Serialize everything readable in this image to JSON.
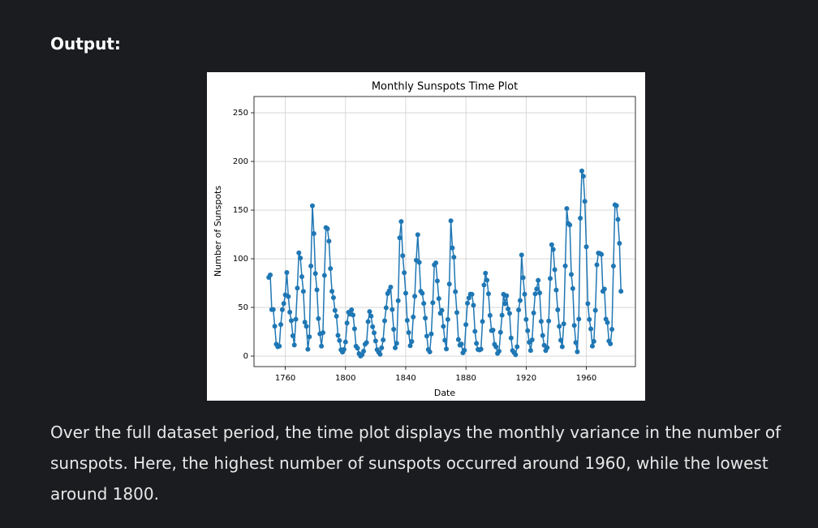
{
  "heading": "Output:",
  "chart_data": {
    "type": "line",
    "title": "Monthly Sunspots Time Plot",
    "xlabel": "Date",
    "ylabel": "Number of Sunspots",
    "color": "#1f77b4",
    "grid": true,
    "xlim": [
      1739.2,
      1992.6
    ],
    "xticks": [
      1760,
      1800,
      1840,
      1880,
      1920,
      1960
    ],
    "ylim": [
      -10.8,
      266.7
    ],
    "yticks": [
      0,
      50,
      100,
      150,
      200,
      250
    ],
    "x": [
      1749,
      1750,
      1751,
      1752,
      1753,
      1754,
      1755,
      1756,
      1757,
      1758,
      1759,
      1760,
      1761,
      1762,
      1763,
      1764,
      1765,
      1766,
      1767,
      1768,
      1769,
      1770,
      1771,
      1772,
      1773,
      1774,
      1775,
      1776,
      1777,
      1778,
      1779,
      1780,
      1781,
      1782,
      1783,
      1784,
      1785,
      1786,
      1787,
      1788,
      1789,
      1790,
      1791,
      1792,
      1793,
      1794,
      1795,
      1796,
      1797,
      1798,
      1799,
      1800,
      1801,
      1802,
      1803,
      1804,
      1805,
      1806,
      1807,
      1808,
      1809,
      1810,
      1811,
      1812,
      1813,
      1814,
      1815,
      1816,
      1817,
      1818,
      1819,
      1820,
      1821,
      1822,
      1823,
      1824,
      1825,
      1826,
      1827,
      1828,
      1829,
      1830,
      1831,
      1832,
      1833,
      1834,
      1835,
      1836,
      1837,
      1838,
      1839,
      1840,
      1841,
      1842,
      1843,
      1844,
      1845,
      1846,
      1847,
      1848,
      1849,
      1850,
      1851,
      1852,
      1853,
      1854,
      1855,
      1856,
      1857,
      1858,
      1859,
      1860,
      1861,
      1862,
      1863,
      1864,
      1865,
      1866,
      1867,
      1868,
      1869,
      1870,
      1871,
      1872,
      1873,
      1874,
      1875,
      1876,
      1877,
      1878,
      1879,
      1880,
      1881,
      1882,
      1883,
      1884,
      1885,
      1886,
      1887,
      1888,
      1889,
      1890,
      1891,
      1892,
      1893,
      1894,
      1895,
      1896,
      1897,
      1898,
      1899,
      1900,
      1901,
      1902,
      1903,
      1904,
      1905,
      1906,
      1907,
      1908,
      1909,
      1910,
      1911,
      1912,
      1913,
      1914,
      1915,
      1916,
      1917,
      1918,
      1919,
      1920,
      1921,
      1922,
      1923,
      1924,
      1925,
      1926,
      1927,
      1928,
      1929,
      1930,
      1931,
      1932,
      1933,
      1934,
      1935,
      1936,
      1937,
      1938,
      1939,
      1940,
      1941,
      1942,
      1943,
      1944,
      1945,
      1946,
      1947,
      1948,
      1949,
      1950,
      1951,
      1952,
      1953,
      1954,
      1955,
      1956,
      1957,
      1958,
      1959,
      1960,
      1961,
      1962,
      1963,
      1964,
      1965,
      1966,
      1967,
      1968,
      1969,
      1970,
      1971,
      1972,
      1973,
      1974,
      1975,
      1976,
      1977,
      1978,
      1979,
      1980,
      1981,
      1982,
      1983
    ],
    "values": [
      80.9,
      83.4,
      47.7,
      47.8,
      30.7,
      12.2,
      9.6,
      10.2,
      32.4,
      47.6,
      54.0,
      62.9,
      85.9,
      61.2,
      45.1,
      36.4,
      20.9,
      11.4,
      37.8,
      69.8,
      106.1,
      100.8,
      81.6,
      66.5,
      34.8,
      30.6,
      7.0,
      19.8,
      92.5,
      154.4,
      125.9,
      84.8,
      68.1,
      38.5,
      22.8,
      10.2,
      24.1,
      82.9,
      132.0,
      130.9,
      118.1,
      89.9,
      66.6,
      60.0,
      46.9,
      41.0,
      21.3,
      16.0,
      6.4,
      4.1,
      6.8,
      14.5,
      34.0,
      45.0,
      43.1,
      47.5,
      42.2,
      28.1,
      10.1,
      8.1,
      2.5,
      0.0,
      1.4,
      5.0,
      12.2,
      13.9,
      35.4,
      45.8,
      41.1,
      30.1,
      23.9,
      15.6,
      6.6,
      4.0,
      1.8,
      8.5,
      16.6,
      36.3,
      49.6,
      64.2,
      67.0,
      70.9,
      47.8,
      27.5,
      8.5,
      13.2,
      56.9,
      121.5,
      138.3,
      103.2,
      85.7,
      64.6,
      36.7,
      24.2,
      10.7,
      15.0,
      40.1,
      61.5,
      98.5,
      124.7,
      96.3,
      66.6,
      64.5,
      54.1,
      39.0,
      20.6,
      6.7,
      4.3,
      22.7,
      54.8,
      93.8,
      95.8,
      77.2,
      59.1,
      44.0,
      47.0,
      30.5,
      16.3,
      7.3,
      37.6,
      74.0,
      139.0,
      111.2,
      101.6,
      66.2,
      44.7,
      17.0,
      11.3,
      12.4,
      3.4,
      6.0,
      32.3,
      54.3,
      59.7,
      63.7,
      63.5,
      52.2,
      25.4,
      13.1,
      6.8,
      6.3,
      7.1,
      35.6,
      73.0,
      85.1,
      78.0,
      64.0,
      41.8,
      26.2,
      26.7,
      12.1,
      9.5,
      2.7,
      5.0,
      24.4,
      42.0,
      63.5,
      53.8,
      62.0,
      48.5,
      43.9,
      18.6,
      5.7,
      3.6,
      1.4,
      9.6,
      47.4,
      57.1,
      103.9,
      80.6,
      63.6,
      37.6,
      26.1,
      14.2,
      5.8,
      16.7,
      44.3,
      63.9,
      69.0,
      77.8,
      64.9,
      35.7,
      21.2,
      11.1,
      5.7,
      8.7,
      36.1,
      79.7,
      114.4,
      109.6,
      88.8,
      67.8,
      47.5,
      30.6,
      16.3,
      9.6,
      33.2,
      92.6,
      151.6,
      136.3,
      134.7,
      83.9,
      69.4,
      31.5,
      13.9,
      4.4,
      38.0,
      141.7,
      190.2,
      184.8,
      159.0,
      112.3,
      53.9,
      37.6,
      27.9,
      10.2,
      15.1,
      47.0,
      93.8,
      105.9,
      105.5,
      104.5,
      66.6,
      68.9,
      38.0,
      34.5,
      15.5,
      12.6,
      27.5,
      92.5,
      155.4,
      154.6,
      140.4,
      115.9,
      66.6
    ]
  },
  "paragraph": "Over the full dataset period, the time plot displays the monthly variance in the number of sunspots. Here, the highest number of sunspots occurred around 1960, while the lowest around 1800."
}
